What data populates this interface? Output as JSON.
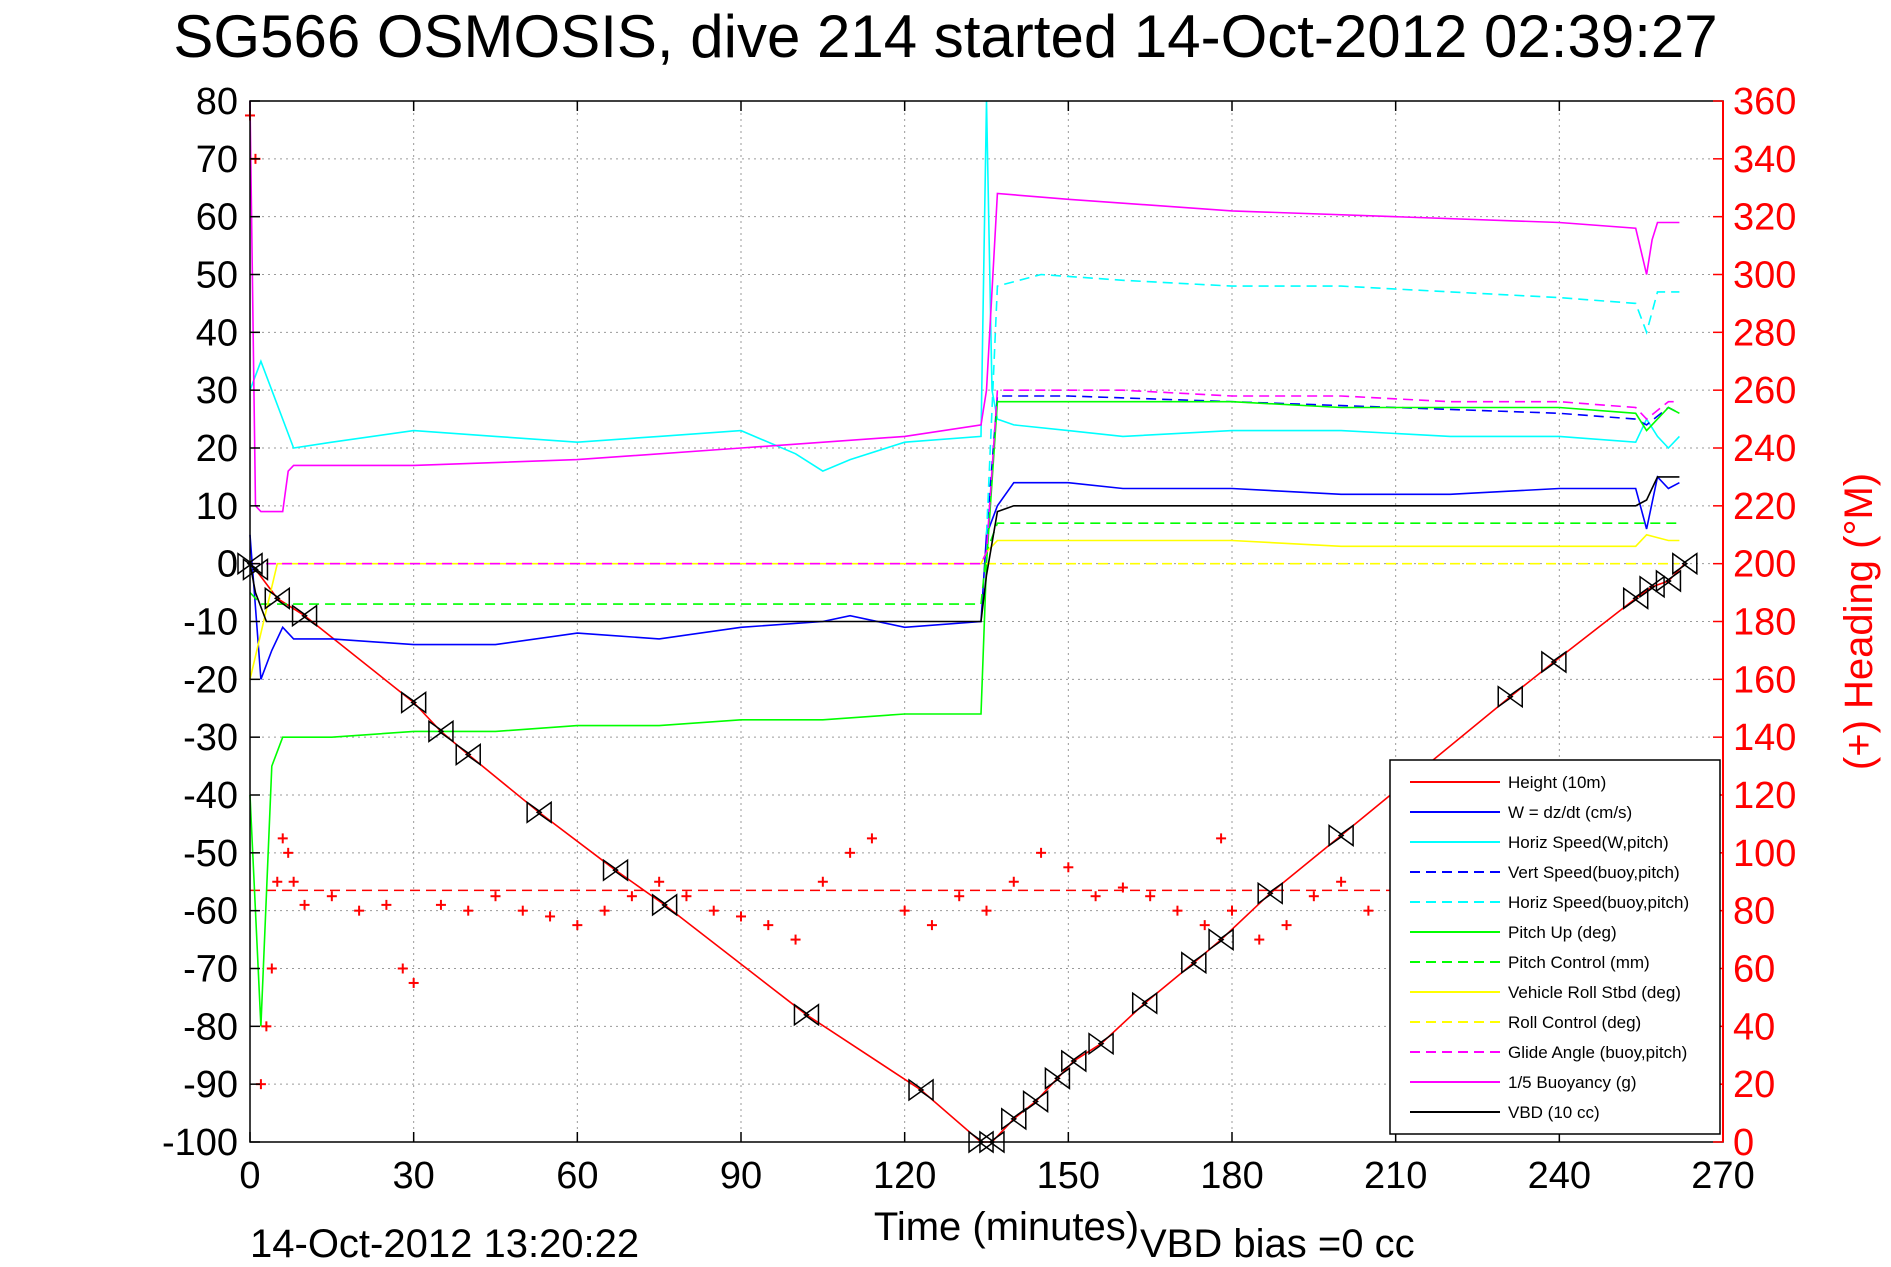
{
  "title": "SG566 OSMOSIS, dive 214 started 14-Oct-2012 02:39:27",
  "footer": {
    "timestamp": "14-Oct-2012 13:20:22",
    "vbd_bias": "VBD bias =0 cc"
  },
  "chart_data": {
    "type": "line",
    "title": "SG566 OSMOSIS, dive 214 started 14-Oct-2012 02:39:27",
    "xlabel": "Time (minutes)",
    "ylabel": "",
    "y2label": "(+) Heading (°M)",
    "xlim": [
      0,
      270
    ],
    "ylim": [
      -100,
      80
    ],
    "y2lim": [
      0,
      360
    ],
    "xticks": [
      0,
      30,
      60,
      90,
      120,
      150,
      180,
      210,
      240,
      270
    ],
    "yticks": [
      80,
      70,
      60,
      50,
      40,
      30,
      20,
      10,
      0,
      -10,
      -20,
      -30,
      -40,
      -50,
      -60,
      -70,
      -80,
      -90,
      -100
    ],
    "y2ticks": [
      360,
      340,
      320,
      300,
      280,
      260,
      240,
      220,
      200,
      180,
      160,
      140,
      120,
      100,
      80,
      60,
      40,
      20,
      0
    ],
    "grid": true,
    "legend_position": "bottom-right",
    "series": [
      {
        "name": "Height (10m)",
        "color": "#ff0000",
        "style": "solid",
        "markers": "triangle-pairs",
        "x": [
          0,
          1,
          5,
          10,
          30,
          35,
          40,
          53,
          67,
          76,
          102,
          123,
          134,
          136,
          140,
          144,
          148,
          151,
          156,
          164,
          173,
          178,
          187,
          200,
          231,
          239,
          254,
          257,
          260,
          263
        ],
        "y": [
          0,
          -1,
          -6,
          -9,
          -24,
          -29,
          -33,
          -43,
          -53,
          -59,
          -78,
          -91,
          -100,
          -100,
          -96,
          -93,
          -89,
          -86,
          -83,
          -76,
          -69,
          -65,
          -57,
          -47,
          -23,
          -17,
          -6,
          -4,
          -3,
          0
        ]
      },
      {
        "name": "W = dz/dt (cm/s)",
        "color": "#0000ff",
        "style": "solid",
        "x": [
          0,
          2,
          4,
          6,
          8,
          15,
          30,
          45,
          60,
          75,
          90,
          105,
          110,
          120,
          134,
          135,
          137,
          140,
          150,
          160,
          180,
          200,
          220,
          240,
          254,
          256,
          258,
          260,
          262
        ],
        "y": [
          5,
          -20,
          -15,
          -11,
          -13,
          -13,
          -14,
          -14,
          -12,
          -13,
          -11,
          -10,
          -9,
          -11,
          -10,
          5,
          10,
          14,
          14,
          13,
          13,
          12,
          12,
          13,
          13,
          6,
          15,
          13,
          14
        ]
      },
      {
        "name": "Horiz Speed(W,pitch)",
        "color": "#00ffff",
        "style": "solid",
        "x": [
          0,
          2,
          4,
          6,
          8,
          15,
          30,
          45,
          60,
          75,
          90,
          100,
          105,
          110,
          120,
          134,
          135,
          136,
          137,
          140,
          150,
          160,
          180,
          200,
          220,
          240,
          254,
          256,
          258,
          260,
          262
        ],
        "y": [
          30,
          35,
          30,
          25,
          20,
          21,
          23,
          22,
          21,
          22,
          23,
          19,
          16,
          18,
          21,
          22,
          80,
          30,
          25,
          24,
          23,
          22,
          23,
          23,
          22,
          22,
          21,
          25,
          22,
          20,
          22
        ]
      },
      {
        "name": "Vert Speed(buoy,pitch)",
        "color": "#0000ff",
        "style": "dashed",
        "x": [
          135,
          137,
          150,
          180,
          210,
          240,
          254,
          256,
          260,
          262
        ],
        "y": [
          5,
          29,
          29,
          28,
          27,
          26,
          25,
          24,
          27,
          26
        ]
      },
      {
        "name": "Horiz Speed(buoy,pitch)",
        "color": "#00ffff",
        "style": "dashed",
        "x": [
          135,
          137,
          145,
          160,
          180,
          200,
          220,
          240,
          254,
          256,
          258,
          260,
          262
        ],
        "y": [
          5,
          48,
          50,
          49,
          48,
          48,
          47,
          46,
          45,
          40,
          47,
          47,
          47
        ]
      },
      {
        "name": "Pitch Up (deg)",
        "color": "#00ff00",
        "style": "solid",
        "x": [
          0,
          2,
          4,
          6,
          8,
          15,
          30,
          45,
          60,
          75,
          90,
          105,
          120,
          134,
          135,
          137,
          140,
          160,
          180,
          200,
          220,
          240,
          254,
          256,
          260,
          262
        ],
        "y": [
          -40,
          -80,
          -35,
          -30,
          -30,
          -30,
          -29,
          -29,
          -28,
          -28,
          -27,
          -27,
          -26,
          -26,
          0,
          28,
          28,
          28,
          28,
          27,
          27,
          27,
          26,
          23,
          27,
          26
        ]
      },
      {
        "name": "Pitch Control (mm)",
        "color": "#00ff00",
        "style": "dashed",
        "x": [
          0,
          2,
          5,
          134,
          135,
          137,
          262
        ],
        "y": [
          -5,
          -7,
          -7,
          -7,
          2,
          7,
          7
        ]
      },
      {
        "name": "Vehicle Roll Stbd (deg)",
        "color": "#ffff00",
        "style": "solid",
        "x": [
          0,
          5,
          10,
          30,
          60,
          90,
          120,
          134,
          135,
          137,
          160,
          180,
          200,
          220,
          240,
          254,
          256,
          260,
          262
        ],
        "y": [
          -20,
          0,
          0,
          0,
          0,
          0,
          0,
          0,
          2,
          4,
          4,
          4,
          3,
          3,
          3,
          3,
          5,
          4,
          4
        ]
      },
      {
        "name": "Roll Control (deg)",
        "color": "#ffff00",
        "style": "dashed",
        "x": [
          0,
          262
        ],
        "y": [
          0,
          0
        ]
      },
      {
        "name": "Glide Angle (buoy,pitch)",
        "color": "#ff00ff",
        "style": "dashed",
        "x": [
          0,
          134,
          135,
          137,
          160,
          180,
          200,
          220,
          240,
          254,
          256,
          260,
          262
        ],
        "y": [
          0,
          0,
          2,
          30,
          30,
          29,
          29,
          28,
          28,
          27,
          25,
          28,
          28
        ]
      },
      {
        "name": "1/5 Buoyancy (g)",
        "color": "#ff00ff",
        "style": "solid",
        "x": [
          0,
          1,
          2,
          6,
          7,
          8,
          30,
          60,
          90,
          120,
          134,
          135,
          137,
          150,
          180,
          210,
          240,
          254,
          256,
          257,
          258,
          262
        ],
        "y": [
          80,
          10,
          9,
          9,
          16,
          17,
          17,
          18,
          20,
          22,
          24,
          30,
          64,
          63,
          61,
          60,
          59,
          58,
          50,
          56,
          59,
          59
        ]
      },
      {
        "name": "VBD (10 cc)",
        "color": "#000000",
        "style": "solid",
        "x": [
          0,
          1,
          3,
          6,
          134,
          135,
          137,
          140,
          254,
          256,
          258,
          262
        ],
        "y": [
          0,
          -5,
          -10,
          -10,
          -10,
          -2,
          9,
          10,
          10,
          11,
          15,
          15
        ]
      },
      {
        "name": "(+) Heading (°M)",
        "axis": "right",
        "color": "#ff0000",
        "style": "plus-markers",
        "x": [
          0,
          1,
          2,
          3,
          4,
          5,
          6,
          7,
          8,
          10,
          15,
          20,
          25,
          28,
          30,
          35,
          40,
          45,
          50,
          55,
          60,
          65,
          70,
          75,
          80,
          85,
          90,
          95,
          100,
          105,
          110,
          114,
          120,
          125,
          130,
          135,
          140,
          145,
          150,
          155,
          160,
          165,
          170,
          175,
          178,
          180,
          185,
          190,
          195,
          200,
          205,
          210
        ],
        "y": [
          355,
          340,
          20,
          40,
          60,
          90,
          105,
          100,
          90,
          82,
          85,
          80,
          82,
          60,
          55,
          82,
          80,
          85,
          80,
          78,
          75,
          80,
          85,
          90,
          85,
          80,
          78,
          75,
          70,
          90,
          100,
          105,
          80,
          75,
          85,
          80,
          90,
          100,
          95,
          85,
          88,
          85,
          80,
          75,
          105,
          80,
          70,
          75,
          85,
          90,
          80,
          82
        ]
      }
    ],
    "reference_lines": [
      {
        "axis": "right",
        "y": 87,
        "color": "#ff0000",
        "style": "dashed"
      }
    ]
  }
}
